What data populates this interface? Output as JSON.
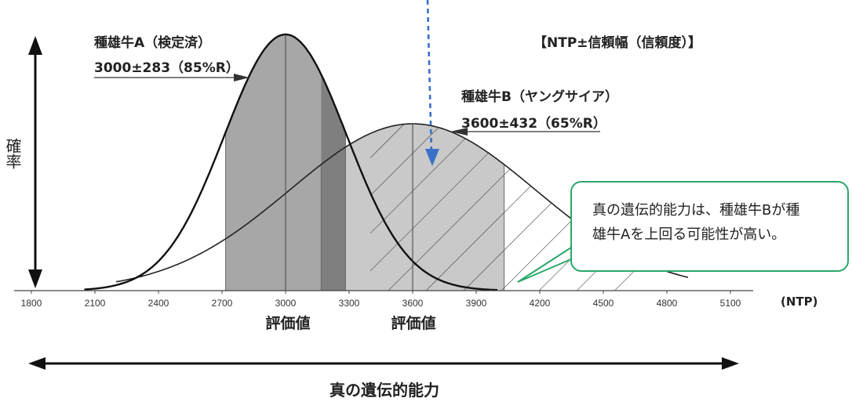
{
  "chart_data": {
    "type": "area",
    "title": "【NTP±信頼幅（信頼度）】",
    "ylabel": "確率",
    "xlabel": "真の遺伝的能力",
    "unit_label": "(NTP)",
    "xlim": [
      1800,
      5100
    ],
    "x_ticks": [
      "1800",
      "2100",
      "2400",
      "2700",
      "3000",
      "3300",
      "3600",
      "3900",
      "4200",
      "4500",
      "4800",
      "5100"
    ],
    "series": [
      {
        "name": "種雄牛A（検定済）",
        "annotation": "3000±283（85%R）",
        "mean": 3000,
        "half_width": 283,
        "reliability": "85%R",
        "shaded_range": [
          2717,
          3283
        ]
      },
      {
        "name": "種雄牛B（ヤングサイア）",
        "annotation": "3600±432（65%R）",
        "mean": 3600,
        "half_width": 432,
        "reliability": "65%R",
        "shaded_range": [
          3168,
          4032
        ]
      }
    ],
    "evaluation_label": "評価値",
    "callout_lines": [
      "真の遺伝的能力は、種雄牛Bが種",
      "雄牛Aを上回る可能性が高い。"
    ],
    "colors": {
      "shade_a": "#a7a7a7",
      "shade_b": "#c9c9c9",
      "overlap": "#7f7f7f",
      "callout_border": "#2aa86a",
      "pointer_arrow": "#3a70c8"
    }
  }
}
